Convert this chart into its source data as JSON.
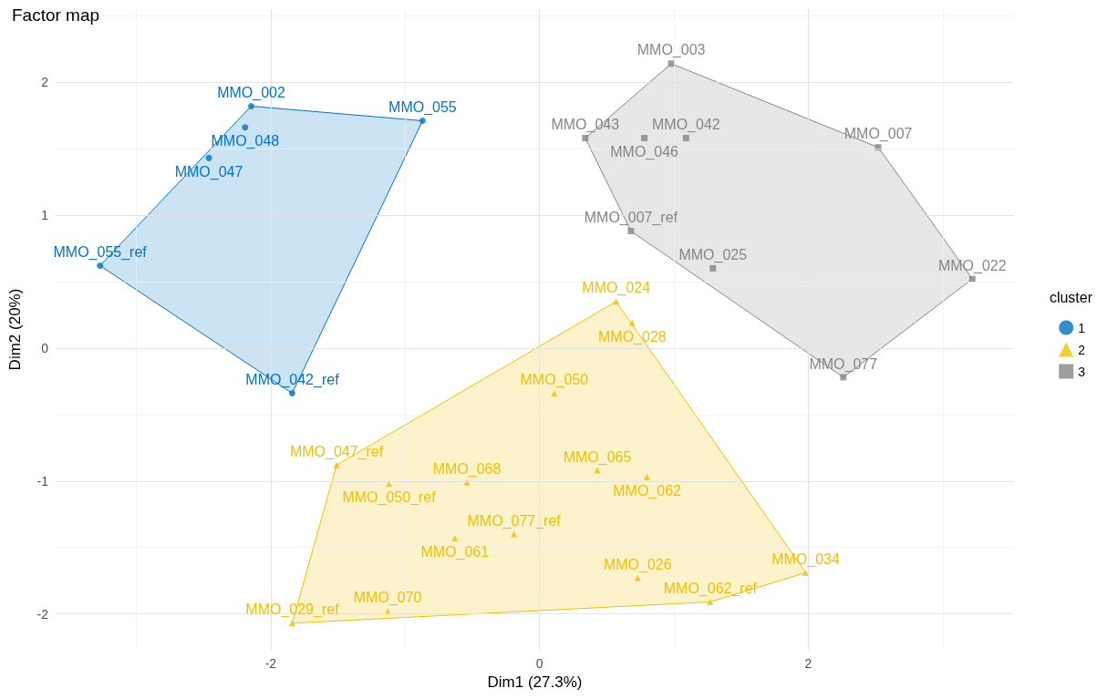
{
  "chart_data": {
    "type": "scatter",
    "title": "Factor map",
    "xlabel": "Dim1 (27.3%)",
    "ylabel": "Dim2 (20%)",
    "legend_title": "cluster",
    "legend": "right",
    "grid": true,
    "xlim": [
      -3.6,
      3.53
    ],
    "ylim": [
      -2.27,
      2.55
    ],
    "xticks": [
      -2,
      0,
      2
    ],
    "yticks": [
      -2,
      -1,
      0,
      1,
      2
    ],
    "series": [
      {
        "type": "area",
        "color": "#0073c2",
        "x": [
          -3.27,
          -2.145,
          -0.87,
          -1.84,
          -3.27
        ],
        "values": [
          0.62,
          1.82,
          1.71,
          -0.34,
          0.62
        ]
      },
      {
        "type": "area",
        "color": "#efc000",
        "x": [
          0.57,
          1.98,
          1.27,
          -1.84,
          -1.51,
          0.57
        ],
        "values": [
          0.35,
          -1.69,
          -1.91,
          -2.07,
          -0.88,
          0.35
        ]
      },
      {
        "type": "area",
        "color": "#868686",
        "x": [
          0.98,
          2.52,
          3.22,
          2.26,
          0.68,
          0.34,
          0.98
        ],
        "values": [
          2.14,
          1.51,
          0.52,
          -0.22,
          0.88,
          1.58,
          2.14
        ]
      },
      {
        "name": "1",
        "color": "#0073c2",
        "marker": "circle",
        "x": [
          -2.145,
          -2.19,
          -0.87,
          -2.46,
          -3.27,
          -1.84
        ],
        "values": [
          1.82,
          1.66,
          1.71,
          1.43,
          0.62,
          -0.34
        ]
      },
      {
        "name": "2",
        "color": "#efc000",
        "marker": "triangle",
        "x": [
          0.57,
          0.69,
          0.11,
          -1.51,
          0.43,
          0.8,
          -0.54,
          -1.12,
          -0.19,
          -0.63,
          0.73,
          1.98,
          -1.13,
          1.27,
          -1.84
        ],
        "values": [
          0.35,
          0.19,
          -0.34,
          -0.88,
          -0.92,
          -0.97,
          -1.01,
          -1.02,
          -1.4,
          -1.43,
          -1.73,
          -1.69,
          -1.98,
          -1.91,
          -2.07
        ]
      },
      {
        "name": "3",
        "color": "#868686",
        "marker": "square",
        "x": [
          0.98,
          0.34,
          0.78,
          1.09,
          2.52,
          0.68,
          1.29,
          3.22,
          2.26
        ],
        "values": [
          2.14,
          1.58,
          1.58,
          1.58,
          1.51,
          0.88,
          0.6,
          0.52,
          -0.22
        ]
      }
    ],
    "annotations": [
      {
        "text": "MMO_002",
        "x": -2.145,
        "y": 1.82
      },
      {
        "text": "MMO_048",
        "x": -2.19,
        "y": 1.66
      },
      {
        "text": "MMO_055",
        "x": -0.87,
        "y": 1.71
      },
      {
        "text": "MMO_047",
        "x": -2.46,
        "y": 1.43
      },
      {
        "text": "MMO_055_ref",
        "x": -3.27,
        "y": 0.62
      },
      {
        "text": "MMO_042_ref",
        "x": -1.84,
        "y": -0.34
      },
      {
        "text": "MMO_024",
        "x": 0.57,
        "y": 0.35
      },
      {
        "text": "MMO_028",
        "x": 0.69,
        "y": 0.19
      },
      {
        "text": "MMO_050",
        "x": 0.11,
        "y": -0.34
      },
      {
        "text": "MMO_047_ref",
        "x": -1.51,
        "y": -0.88
      },
      {
        "text": "MMO_065",
        "x": 0.43,
        "y": -0.92
      },
      {
        "text": "MMO_062",
        "x": 0.8,
        "y": -0.97
      },
      {
        "text": "MMO_068",
        "x": -0.54,
        "y": -1.01
      },
      {
        "text": "MMO_050_ref",
        "x": -1.12,
        "y": -1.02
      },
      {
        "text": "MMO_077_ref",
        "x": -0.19,
        "y": -1.4
      },
      {
        "text": "MMO_061",
        "x": -0.63,
        "y": -1.43
      },
      {
        "text": "MMO_026",
        "x": 0.73,
        "y": -1.73
      },
      {
        "text": "MMO_034",
        "x": 1.98,
        "y": -1.69
      },
      {
        "text": "MMO_070",
        "x": -1.13,
        "y": -1.98
      },
      {
        "text": "MMO_062_ref",
        "x": 1.27,
        "y": -1.91
      },
      {
        "text": "MMO_029_ref",
        "x": -1.84,
        "y": -2.07
      },
      {
        "text": "MMO_003",
        "x": 0.98,
        "y": 2.14
      },
      {
        "text": "MMO_043",
        "x": 0.34,
        "y": 1.58
      },
      {
        "text": "MMO_046",
        "x": 0.78,
        "y": 1.58
      },
      {
        "text": "MMO_042",
        "x": 1.09,
        "y": 1.58
      },
      {
        "text": "MMO_007",
        "x": 2.52,
        "y": 1.51
      },
      {
        "text": "MMO_007_ref",
        "x": 0.68,
        "y": 0.88
      },
      {
        "text": "MMO_025",
        "x": 1.29,
        "y": 0.6
      },
      {
        "text": "MMO_022",
        "x": 3.22,
        "y": 0.52
      },
      {
        "text": "MMO_077",
        "x": 2.26,
        "y": -0.22
      }
    ]
  }
}
